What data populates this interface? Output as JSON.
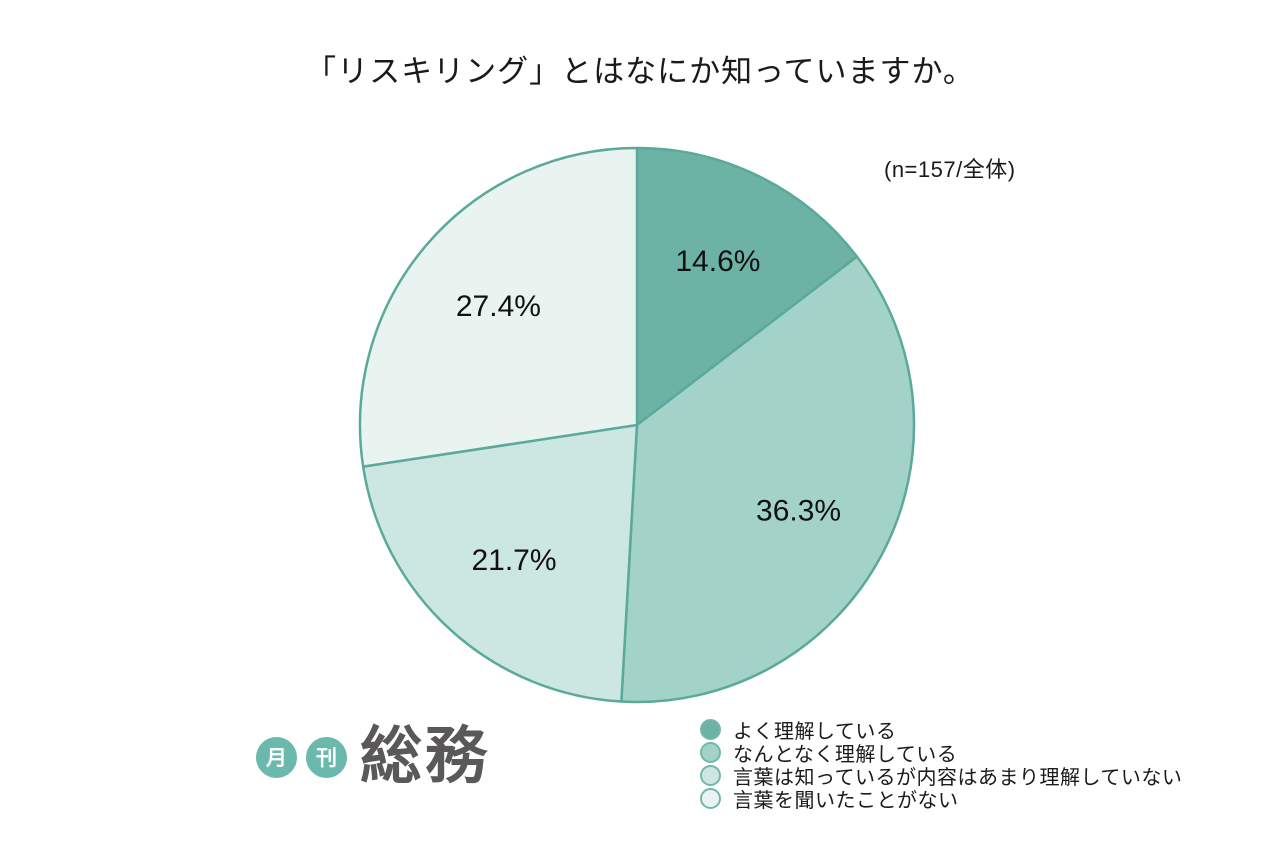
{
  "title": "「リスキリング」とはなにか知っていますか。",
  "sample_note": "(n=157/全体)",
  "chart_data": {
    "type": "pie",
    "title": "「リスキリング」とはなにか知っていますか。",
    "annotation": "(n=157/全体)",
    "sample_size": 157,
    "start_angle_deg": 0,
    "direction": "clockwise",
    "legend_position": "bottom-right",
    "stroke_color": "#5aa99a",
    "label_color": "#111111",
    "segments": [
      {
        "label": "よく理解している",
        "value": 14.6,
        "display": "14.6%",
        "color": "#6cb3a6"
      },
      {
        "label": "なんとなく理解している",
        "value": 36.3,
        "display": "36.3%",
        "color": "#a3d2c9"
      },
      {
        "label": "言葉は知っているが内容はあまり理解していない",
        "value": 21.7,
        "display": "21.7%",
        "color": "#cce7e2"
      },
      {
        "label": "言葉を聞いたことがない",
        "value": 27.4,
        "display": "27.4%",
        "color": "#e9f4f1"
      }
    ]
  },
  "logo": {
    "badge1": "月",
    "badge2": "刊",
    "name": "総務",
    "circle_color": "#6bb9ad",
    "name_color": "#5a5858"
  }
}
